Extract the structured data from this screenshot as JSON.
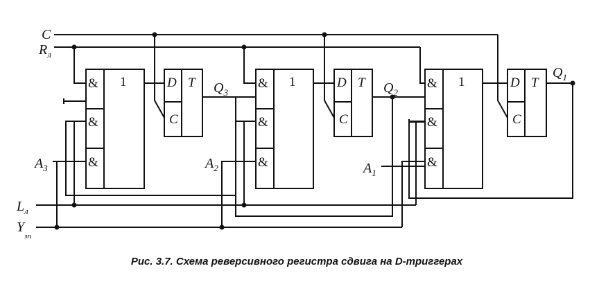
{
  "signals": {
    "clock": "C",
    "reset": {
      "main": "R",
      "sub": "л"
    },
    "load": {
      "main": "L",
      "sub": "л"
    },
    "enable": {
      "main": "Y",
      "sub": "зп"
    },
    "inputs": [
      {
        "main": "A",
        "sub": "3"
      },
      {
        "main": "A",
        "sub": "2"
      },
      {
        "main": "A",
        "sub": "1"
      }
    ]
  },
  "gate": {
    "and_symbol": "&",
    "or_symbol": "1"
  },
  "trigger": {
    "d_label": "D",
    "t_label": "T",
    "c_label": "C"
  },
  "outputs": [
    {
      "main": "Q",
      "sub": "3"
    },
    {
      "main": "Q",
      "sub": "2"
    },
    {
      "main": "Q",
      "sub": "1"
    }
  ],
  "caption": "Рис. 3.7. Схема реверсивного регистра сдвига на D-триггерах"
}
